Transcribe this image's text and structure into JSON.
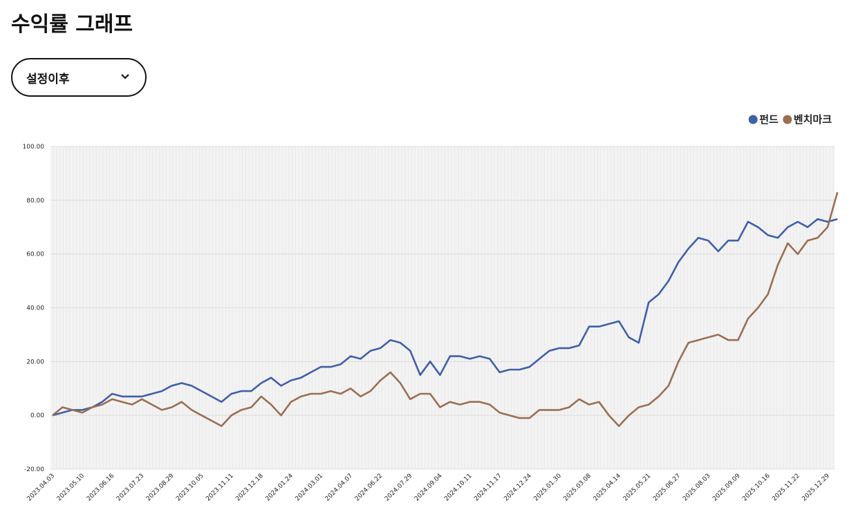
{
  "header": {
    "title": "수익률 그래프"
  },
  "filter": {
    "selected": "설정이후"
  },
  "chart_data": {
    "type": "line",
    "categories": [
      "2023.04.03",
      null,
      null,
      "2023.05.10",
      null,
      null,
      "2023.06.16",
      null,
      null,
      "2023.07.23",
      null,
      null,
      "2023.08.29",
      null,
      null,
      "2023.10.05",
      null,
      null,
      "2023.11.11",
      null,
      null,
      "2023.12.18",
      null,
      null,
      "2024.01.24",
      null,
      null,
      "2024.03.01",
      null,
      null,
      "2024.04.07",
      null,
      null,
      "2024.06.22",
      null,
      null,
      "2024.07.29",
      null,
      null,
      "2024.09.04",
      null,
      null,
      "2024.10.11",
      null,
      null,
      "2024.11.17",
      null,
      null,
      "2024.12.24",
      null,
      null,
      "2025.01.30",
      null,
      null,
      "2025.03.08",
      null,
      null,
      "2025.04.14",
      null,
      null,
      "2025.05.21",
      null,
      null,
      "2025.06.27",
      null,
      null,
      "2025.08.03",
      null,
      null,
      "2025.09.09",
      null,
      null,
      "2025.10.16",
      null,
      null,
      "2025.11.22",
      null,
      null,
      "2025.12.29",
      null
    ],
    "series": [
      {
        "name": "펀드",
        "color": "#3f5fa8",
        "values": [
          0,
          1,
          2,
          2,
          3,
          5,
          8,
          7,
          7,
          7,
          8,
          9,
          11,
          12,
          11,
          9,
          7,
          5,
          8,
          9,
          9,
          12,
          14,
          11,
          13,
          14,
          16,
          18,
          18,
          19,
          22,
          21,
          24,
          25,
          28,
          27,
          24,
          15,
          20,
          15,
          22,
          22,
          21,
          22,
          21,
          16,
          17,
          17,
          18,
          21,
          24,
          25,
          25,
          26,
          33,
          33,
          34,
          35,
          29,
          27,
          42,
          45,
          50,
          57,
          62,
          66,
          65,
          61,
          65,
          65,
          72,
          70,
          67,
          66,
          70,
          72,
          70,
          73,
          72,
          73
        ]
      },
      {
        "name": "벤치마크",
        "color": "#9b6e52",
        "values": [
          0,
          3,
          2,
          1,
          3,
          4,
          6,
          5,
          4,
          6,
          4,
          2,
          3,
          5,
          2,
          0,
          -2,
          -4,
          0,
          2,
          3,
          7,
          4,
          0,
          5,
          7,
          8,
          8,
          9,
          8,
          10,
          7,
          9,
          13,
          16,
          12,
          6,
          8,
          8,
          3,
          5,
          4,
          5,
          5,
          4,
          1,
          0,
          -1,
          -1,
          2,
          2,
          2,
          3,
          6,
          4,
          5,
          0,
          -4,
          0,
          3,
          4,
          7,
          11,
          20,
          27,
          28,
          29,
          30,
          28,
          28,
          36,
          40,
          45,
          56,
          64,
          60,
          65,
          66,
          70,
          83
        ]
      }
    ],
    "ylim": [
      -20,
      100
    ],
    "yticks": [
      {
        "value": -20,
        "label": "-20.00"
      },
      {
        "value": 0,
        "label": "0.00"
      },
      {
        "value": 20,
        "label": "20.00"
      },
      {
        "value": 40,
        "label": "40.00"
      },
      {
        "value": 60,
        "label": "60.00"
      },
      {
        "value": 80,
        "label": "80.00"
      },
      {
        "value": 100,
        "label": "100.00"
      }
    ],
    "grid": true,
    "legend": "top-right"
  }
}
